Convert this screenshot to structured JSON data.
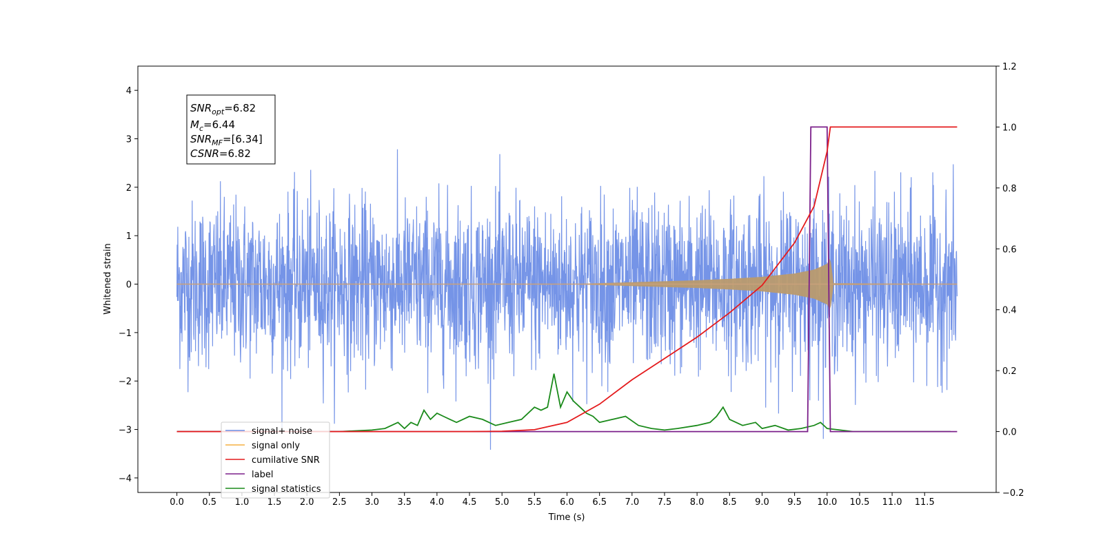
{
  "chart_data": {
    "type": "line",
    "xlabel": "Time (s)",
    "ylabel": "Whitened strain",
    "xlim": [
      -0.6,
      12.6
    ],
    "ylim": [
      -4.3,
      4.5
    ],
    "ylim_right": [
      -0.2,
      1.2
    ],
    "x_ticks": [
      "0.0",
      "0.5",
      "1.0",
      "1.5",
      "2.0",
      "2.5",
      "3.0",
      "3.5",
      "4.0",
      "4.5",
      "5.0",
      "5.5",
      "6.0",
      "6.5",
      "7.0",
      "7.5",
      "8.0",
      "8.5",
      "9.0",
      "9.5",
      "10.0",
      "10.5",
      "11.0",
      "11.5"
    ],
    "y_ticks_left": [
      "−4",
      "−3",
      "−2",
      "−1",
      "0",
      "1",
      "2",
      "3",
      "4"
    ],
    "y_ticks_right": [
      "−0.2",
      "0.0",
      "0.2",
      "0.4",
      "0.6",
      "0.8",
      "1.0",
      "1.2"
    ],
    "grid": false,
    "legend_position": "lower-left",
    "annotation": {
      "snr_opt": {
        "base": "SNR",
        "sub": "opt",
        "value": "=6.82"
      },
      "mc": {
        "base": "M",
        "sub": "c",
        "value": "=6.44"
      },
      "snr_mf": {
        "base": "SNR",
        "sub": "MF",
        "value": "=[6.34]"
      },
      "csnr": {
        "base": "CSNR",
        "value": "=6.82"
      }
    },
    "series": [
      {
        "name": "signal+ noise",
        "axis": "left",
        "color": "#6e8ee6",
        "description_values": {
          "x_range": [
            0.0,
            12.0
          ],
          "std": 0.85
        }
      },
      {
        "name": "signal only",
        "axis": "left",
        "color": "#f5b041",
        "envelope": {
          "x": [
            0.0,
            6.0,
            7.0,
            8.0,
            8.5,
            9.0,
            9.5,
            9.8,
            10.0,
            10.05,
            10.1,
            12.0
          ],
          "amp": [
            0.0,
            0.0,
            0.04,
            0.08,
            0.11,
            0.15,
            0.22,
            0.3,
            0.42,
            0.55,
            0.02,
            0.0
          ]
        }
      },
      {
        "name": "cumilative SNR",
        "axis": "right",
        "color": "#e41a1c",
        "x": [
          0.0,
          4.5,
          5.0,
          5.5,
          6.0,
          6.5,
          7.0,
          7.5,
          8.0,
          8.5,
          9.0,
          9.5,
          9.8,
          10.0,
          10.05,
          12.0
        ],
        "y": [
          0.0,
          0.0,
          0.001,
          0.006,
          0.03,
          0.09,
          0.17,
          0.24,
          0.31,
          0.39,
          0.48,
          0.62,
          0.74,
          0.92,
          1.0,
          1.0
        ]
      },
      {
        "name": "label",
        "axis": "right",
        "color": "#7b1f8a",
        "x": [
          0.0,
          9.7,
          9.75,
          10.0,
          10.05,
          12.0
        ],
        "y": [
          0.0,
          0.0,
          1.0,
          1.0,
          0.0,
          0.0
        ]
      },
      {
        "name": "signal statistics",
        "axis": "right",
        "color": "#1a8a1a",
        "x": [
          0.0,
          2.5,
          3.0,
          3.2,
          3.4,
          3.5,
          3.6,
          3.7,
          3.8,
          3.9,
          4.0,
          4.1,
          4.2,
          4.3,
          4.5,
          4.7,
          4.9,
          5.1,
          5.3,
          5.5,
          5.6,
          5.7,
          5.8,
          5.9,
          6.0,
          6.1,
          6.2,
          6.3,
          6.4,
          6.5,
          6.7,
          6.9,
          7.1,
          7.3,
          7.5,
          7.7,
          8.0,
          8.2,
          8.3,
          8.4,
          8.5,
          8.7,
          8.9,
          9.0,
          9.2,
          9.4,
          9.6,
          9.8,
          9.9,
          10.0,
          10.2,
          10.4,
          11.9
        ],
        "y": [
          0.0,
          0.0,
          0.005,
          0.01,
          0.03,
          0.01,
          0.03,
          0.02,
          0.07,
          0.04,
          0.06,
          0.05,
          0.04,
          0.03,
          0.05,
          0.04,
          0.02,
          0.03,
          0.04,
          0.08,
          0.07,
          0.08,
          0.19,
          0.08,
          0.13,
          0.1,
          0.08,
          0.06,
          0.05,
          0.03,
          0.04,
          0.05,
          0.02,
          0.01,
          0.005,
          0.01,
          0.02,
          0.03,
          0.05,
          0.08,
          0.04,
          0.02,
          0.03,
          0.01,
          0.02,
          0.005,
          0.01,
          0.02,
          0.03,
          0.01,
          0.005,
          0.0,
          0.0
        ]
      }
    ]
  }
}
